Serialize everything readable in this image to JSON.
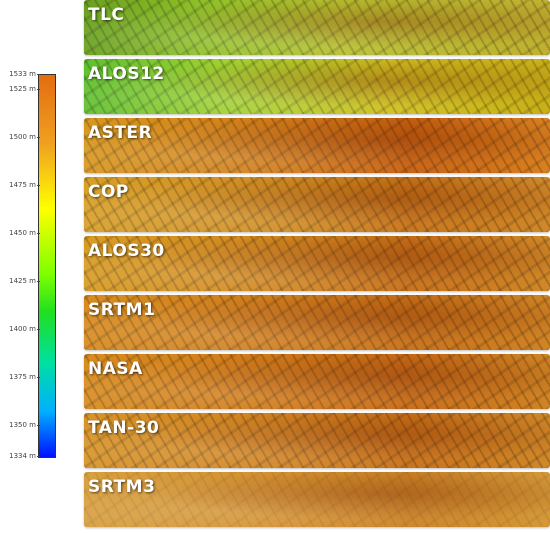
{
  "legend": {
    "ticks": [
      "1533 m",
      "1525 m",
      "1500 m",
      "1475 m",
      "1450 m",
      "1425 m",
      "1400 m",
      "1375 m",
      "1350 m",
      "1334 m"
    ],
    "min_value": 1334,
    "max_value": 1533,
    "tick_values": [
      1533,
      1525,
      1500,
      1475,
      1450,
      1425,
      1400,
      1375,
      1350,
      1334
    ],
    "colors": [
      "#e36d10",
      "#ffff00",
      "#20e020",
      "#00b0ff",
      "#0010ff"
    ]
  },
  "strips": [
    {
      "label": "TLC"
    },
    {
      "label": "ALOS12"
    },
    {
      "label": "ASTER"
    },
    {
      "label": "COP"
    },
    {
      "label": "ALOS30"
    },
    {
      "label": "SRTM1"
    },
    {
      "label": "NASA"
    },
    {
      "label": "TAN-30"
    },
    {
      "label": "SRTM3"
    }
  ]
}
